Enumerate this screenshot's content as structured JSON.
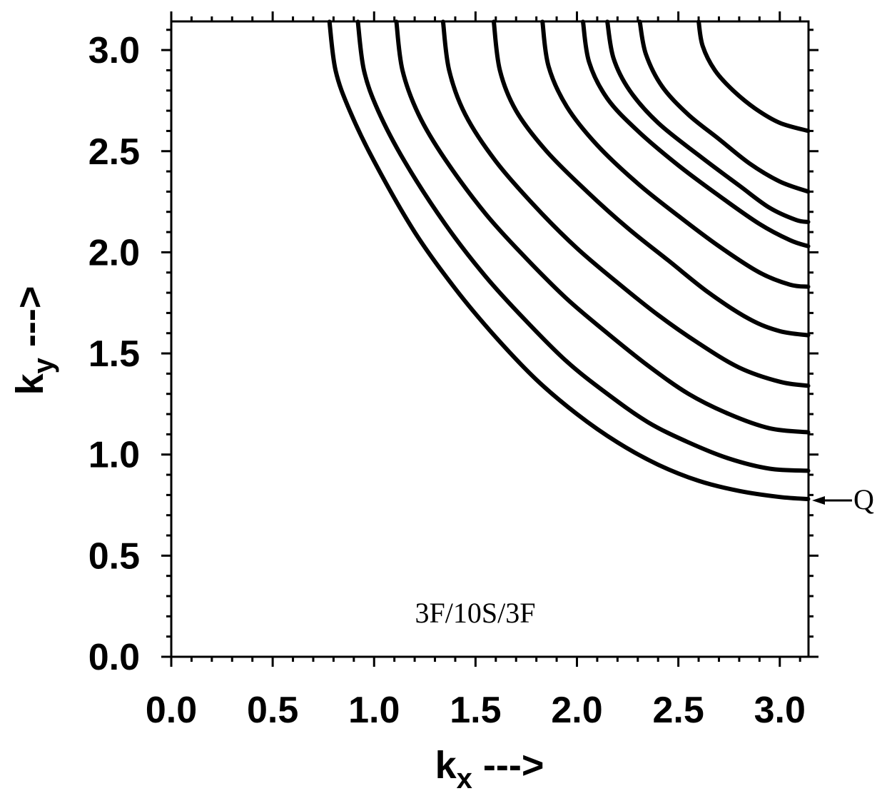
{
  "chart_data": {
    "type": "line",
    "chart_kind": "contour",
    "xlabel": {
      "main": "k",
      "sub": "x",
      "suffix": " --->"
    },
    "ylabel": {
      "main": "k",
      "sub": "y",
      "suffix": " --->"
    },
    "xlim": [
      0,
      3.14159
    ],
    "ylim": [
      0,
      3.14159
    ],
    "xticks": [
      "0.0",
      "0.5",
      "1.0",
      "1.5",
      "2.0",
      "2.5",
      "3.0"
    ],
    "yticks": [
      "0.0",
      "0.5",
      "1.0",
      "1.5",
      "2.0",
      "2.5",
      "3.0"
    ],
    "grid": false,
    "annotations": {
      "label": "3F/10S/3F",
      "marker_text": "Q",
      "marker_point": {
        "x": 3.14159,
        "y": 0.78
      }
    },
    "series": [
      {
        "points": [
          [
            0.78,
            3.14
          ],
          [
            0.81,
            2.9
          ],
          [
            0.88,
            2.7
          ],
          [
            1.0,
            2.45
          ],
          [
            1.2,
            2.1
          ],
          [
            1.4,
            1.82
          ],
          [
            1.6,
            1.58
          ],
          [
            1.8,
            1.37
          ],
          [
            2.0,
            1.2
          ],
          [
            2.2,
            1.06
          ],
          [
            2.4,
            0.95
          ],
          [
            2.6,
            0.87
          ],
          [
            2.8,
            0.82
          ],
          [
            3.0,
            0.79
          ],
          [
            3.14,
            0.78
          ]
        ]
      },
      {
        "points": [
          [
            0.92,
            3.14
          ],
          [
            0.95,
            2.9
          ],
          [
            1.02,
            2.7
          ],
          [
            1.15,
            2.45
          ],
          [
            1.35,
            2.14
          ],
          [
            1.55,
            1.88
          ],
          [
            1.75,
            1.66
          ],
          [
            1.95,
            1.46
          ],
          [
            2.15,
            1.3
          ],
          [
            2.35,
            1.16
          ],
          [
            2.55,
            1.06
          ],
          [
            2.75,
            0.98
          ],
          [
            2.95,
            0.93
          ],
          [
            3.14,
            0.92
          ]
        ]
      },
      {
        "points": [
          [
            1.11,
            3.14
          ],
          [
            1.14,
            2.9
          ],
          [
            1.22,
            2.68
          ],
          [
            1.35,
            2.46
          ],
          [
            1.55,
            2.19
          ],
          [
            1.75,
            1.97
          ],
          [
            1.95,
            1.77
          ],
          [
            2.15,
            1.6
          ],
          [
            2.35,
            1.44
          ],
          [
            2.55,
            1.3
          ],
          [
            2.75,
            1.2
          ],
          [
            2.95,
            1.13
          ],
          [
            3.14,
            1.11
          ]
        ]
      },
      {
        "points": [
          [
            1.34,
            3.14
          ],
          [
            1.37,
            2.9
          ],
          [
            1.45,
            2.68
          ],
          [
            1.6,
            2.45
          ],
          [
            1.8,
            2.22
          ],
          [
            2.0,
            2.02
          ],
          [
            2.2,
            1.85
          ],
          [
            2.4,
            1.69
          ],
          [
            2.6,
            1.55
          ],
          [
            2.8,
            1.43
          ],
          [
            3.0,
            1.36
          ],
          [
            3.14,
            1.34
          ]
        ]
      },
      {
        "points": [
          [
            1.59,
            3.14
          ],
          [
            1.62,
            2.9
          ],
          [
            1.7,
            2.7
          ],
          [
            1.85,
            2.5
          ],
          [
            2.05,
            2.3
          ],
          [
            2.25,
            2.12
          ],
          [
            2.45,
            1.96
          ],
          [
            2.65,
            1.8
          ],
          [
            2.85,
            1.67
          ],
          [
            3.0,
            1.61
          ],
          [
            3.14,
            1.59
          ]
        ]
      },
      {
        "points": [
          [
            1.83,
            3.14
          ],
          [
            1.86,
            2.92
          ],
          [
            1.95,
            2.72
          ],
          [
            2.1,
            2.53
          ],
          [
            2.3,
            2.34
          ],
          [
            2.5,
            2.18
          ],
          [
            2.7,
            2.03
          ],
          [
            2.9,
            1.9
          ],
          [
            3.05,
            1.84
          ],
          [
            3.14,
            1.83
          ]
        ]
      },
      {
        "points": [
          [
            2.03,
            3.14
          ],
          [
            2.06,
            2.94
          ],
          [
            2.15,
            2.76
          ],
          [
            2.3,
            2.6
          ],
          [
            2.5,
            2.43
          ],
          [
            2.7,
            2.28
          ],
          [
            2.9,
            2.14
          ],
          [
            3.05,
            2.06
          ],
          [
            3.14,
            2.03
          ]
        ]
      },
      {
        "points": [
          [
            2.15,
            3.14
          ],
          [
            2.18,
            2.96
          ],
          [
            2.26,
            2.8
          ],
          [
            2.4,
            2.64
          ],
          [
            2.6,
            2.48
          ],
          [
            2.8,
            2.33
          ],
          [
            2.95,
            2.22
          ],
          [
            3.08,
            2.16
          ],
          [
            3.14,
            2.15
          ]
        ]
      },
      {
        "points": [
          [
            2.31,
            3.14
          ],
          [
            2.34,
            2.98
          ],
          [
            2.42,
            2.82
          ],
          [
            2.55,
            2.68
          ],
          [
            2.7,
            2.56
          ],
          [
            2.85,
            2.44
          ],
          [
            3.0,
            2.35
          ],
          [
            3.14,
            2.3
          ]
        ]
      },
      {
        "points": [
          [
            2.6,
            3.14
          ],
          [
            2.62,
            3.02
          ],
          [
            2.68,
            2.9
          ],
          [
            2.77,
            2.8
          ],
          [
            2.88,
            2.71
          ],
          [
            3.0,
            2.64
          ],
          [
            3.14,
            2.6
          ]
        ]
      }
    ]
  }
}
